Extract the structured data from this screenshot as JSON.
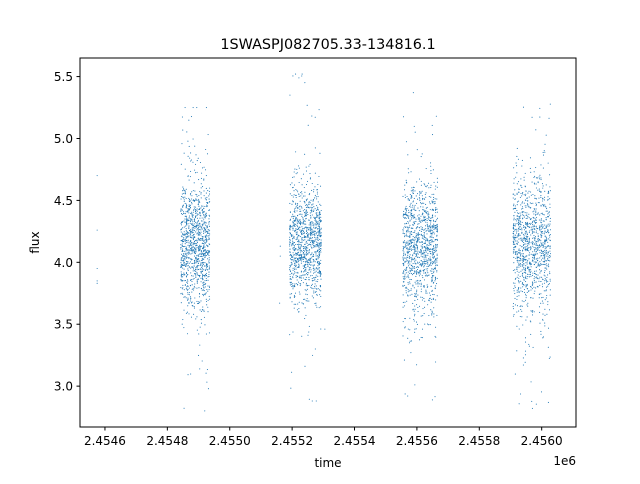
{
  "chart_data": {
    "type": "scatter",
    "title": "1SWASPJ082705.33-134816.1",
    "xlabel": "time",
    "ylabel": "flux",
    "x_offset_label": "1e6",
    "xlim": [
      2454520,
      2456110
    ],
    "ylim": [
      2.67,
      5.65
    ],
    "x_ticks": [
      2454600,
      2454800,
      2455000,
      2455200,
      2455400,
      2455600,
      2455800,
      2456000
    ],
    "x_tick_labels": [
      "2.4546",
      "2.4548",
      "2.4550",
      "2.4552",
      "2.4554",
      "2.4556",
      "2.4558",
      "2.4560"
    ],
    "y_ticks": [
      3.0,
      3.5,
      4.0,
      4.5,
      5.0,
      5.5
    ],
    "y_tick_labels": [
      "3.0",
      "3.5",
      "4.0",
      "4.5",
      "5.0",
      "5.5"
    ],
    "grid": false,
    "legend": "none",
    "marker_color": "#1f77b4",
    "series": [
      {
        "observing_seasons": [
          {
            "x_range": [
              2454843,
              2454937
            ],
            "flux_core": [
              3.6,
              4.7
            ],
            "flux_extremes": [
              2.8,
              5.25
            ]
          },
          {
            "x_range": [
              2455192,
              2455295
            ],
            "flux_core": [
              3.65,
              4.65
            ],
            "flux_extremes": [
              2.88,
              5.52
            ]
          },
          {
            "x_range": [
              2455555,
              2455668
            ],
            "flux_core": [
              3.6,
              4.65
            ],
            "flux_extremes": [
              2.82,
              5.37
            ]
          },
          {
            "x_range": [
              2455908,
              2456030
            ],
            "flux_core": [
              3.55,
              4.75
            ],
            "flux_extremes": [
              2.82,
              5.48
            ]
          }
        ],
        "isolated_points": [
          {
            "x": 2454575,
            "y": 4.7
          },
          {
            "x": 2454575,
            "y": 4.26
          },
          {
            "x": 2454575,
            "y": 3.95
          },
          {
            "x": 2454575,
            "y": 3.85
          },
          {
            "x": 2454575,
            "y": 3.83
          },
          {
            "x": 2455162,
            "y": 4.13
          },
          {
            "x": 2455162,
            "y": 4.05
          },
          {
            "x": 2455160,
            "y": 3.67
          },
          {
            "x": 2455305,
            "y": 3.46
          }
        ]
      }
    ]
  }
}
